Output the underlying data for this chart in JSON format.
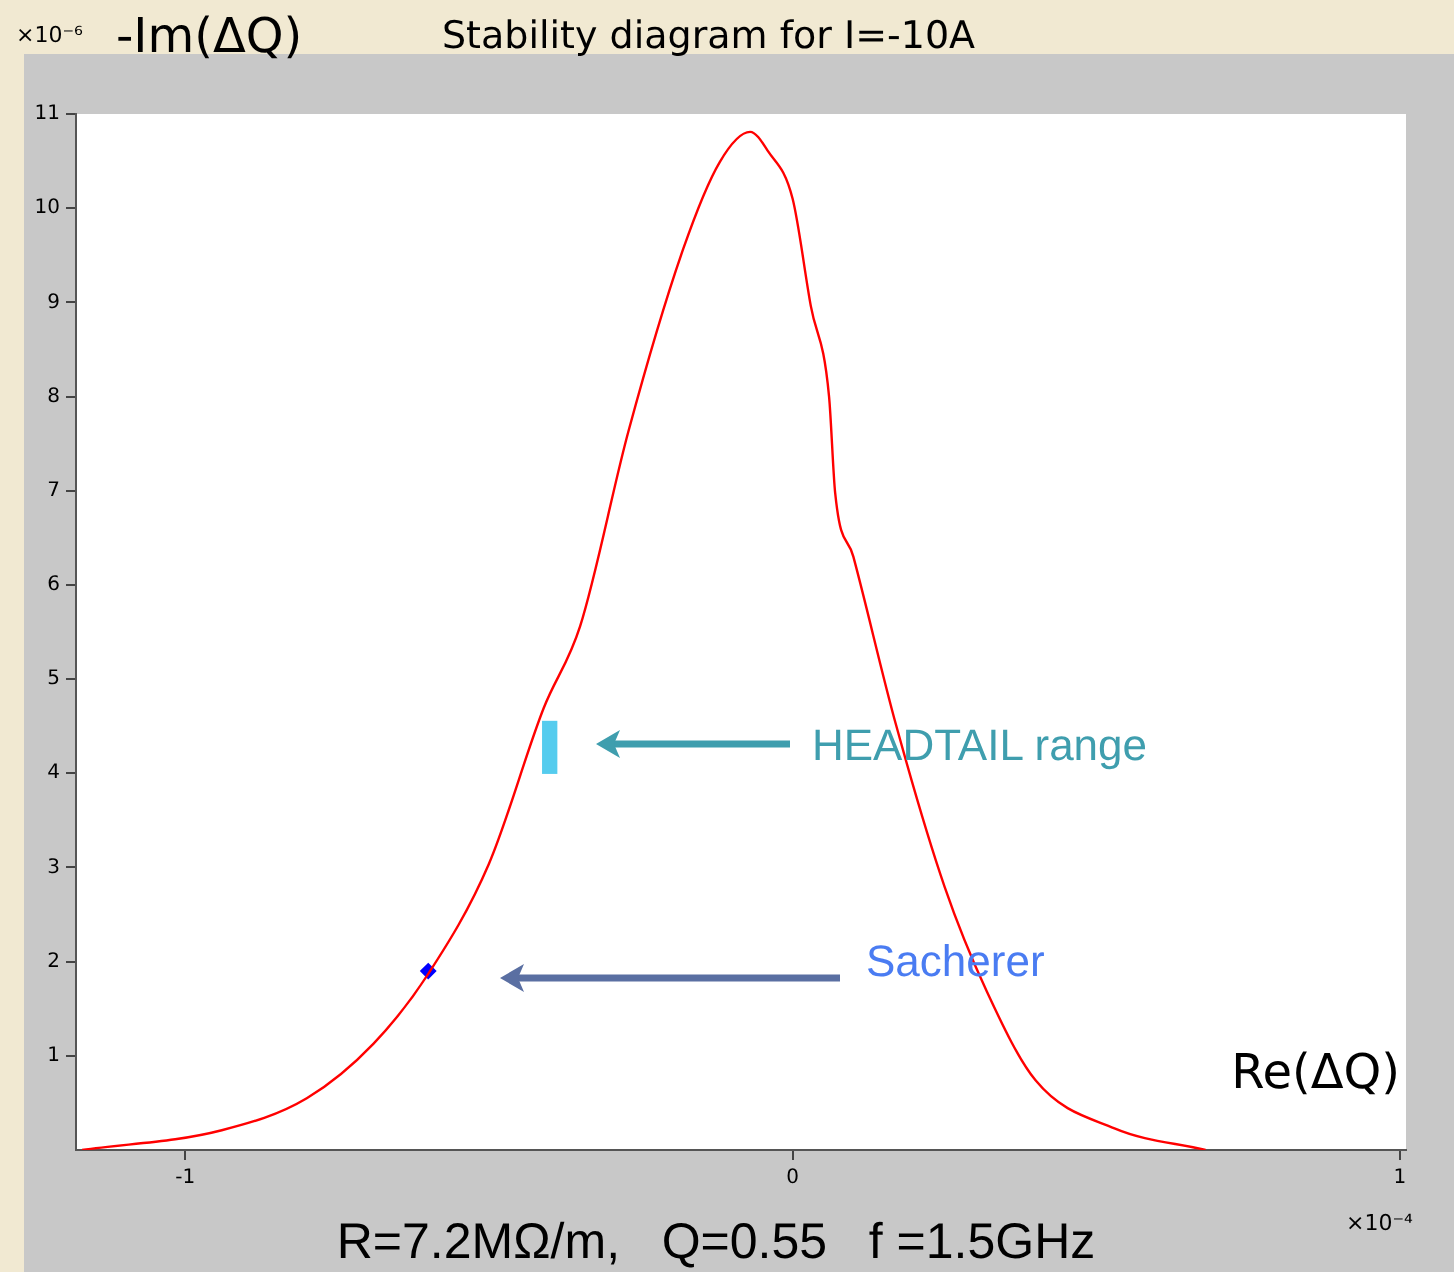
{
  "chart_data": {
    "type": "line",
    "title": "Stability diagram for I=-10A",
    "xlabel": "Re(ΔQ)",
    "ylabel": "-Im(ΔQ)",
    "xlim": [
      -1.18,
      1.01
    ],
    "xticks": [
      -1,
      0,
      1
    ],
    "ylim": [
      0,
      11
    ],
    "yticks": [
      1,
      2,
      3,
      4,
      5,
      6,
      7,
      8,
      9,
      10,
      11
    ],
    "grid": false,
    "legend": false,
    "series": [
      {
        "color": "#ff0000",
        "marker": "none",
        "x": [
          -1.17,
          -0.94,
          -0.8,
          -0.69,
          -0.6,
          -0.5,
          -0.41,
          -0.35,
          -0.27,
          -0.18,
          -0.12,
          -0.07,
          -0.04,
          0.0,
          0.03,
          0.06,
          0.07,
          0.1,
          0.17,
          0.25,
          0.32,
          0.4,
          0.53,
          0.68
        ],
        "values": [
          0,
          0.21,
          0.55,
          1.13,
          1.87,
          3.04,
          4.69,
          5.56,
          7.64,
          9.57,
          10.49,
          10.81,
          10.6,
          10.1,
          8.96,
          8.0,
          6.98,
          6.3,
          4.52,
          2.8,
          1.68,
          0.74,
          0.23,
          0
        ]
      },
      {
        "type": "scatter",
        "color": "#0000ff",
        "marker": "diamond",
        "x": [
          -0.6
        ],
        "values": [
          1.9
        ]
      },
      {
        "type": "bar",
        "color": "#55ccee",
        "x": [
          -0.4
        ],
        "base": [
          4.0
        ],
        "values": [
          0.55
        ]
      }
    ],
    "annotations": [
      "HEADTAIL range",
      "Sacherer",
      "×10⁻⁶",
      "×10⁻⁴",
      "R=7.2MΩ/m,   Q=0.55   f =1.5GHz"
    ]
  }
}
